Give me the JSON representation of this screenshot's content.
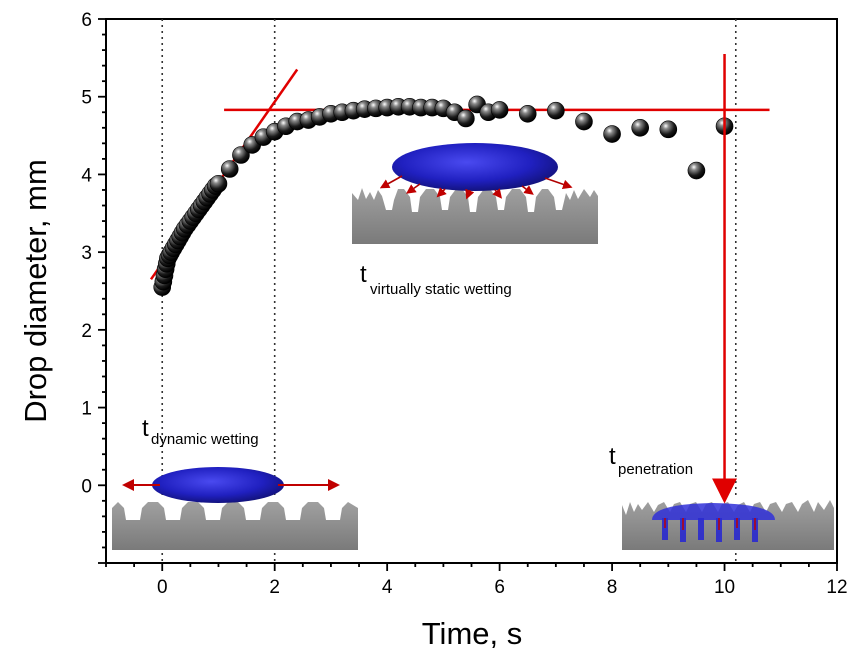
{
  "chart_data": {
    "type": "scatter",
    "xlabel": "Time, s",
    "ylabel": "Drop diameter, mm",
    "xlim": [
      -1,
      12
    ],
    "ylim": [
      -1,
      6
    ],
    "xticks": [
      "0",
      "2",
      "4",
      "6",
      "8",
      "10",
      "12"
    ],
    "yticks": [
      "0",
      "1",
      "2",
      "3",
      "4",
      "5",
      "6"
    ],
    "grid": false,
    "series": [
      {
        "name": "",
        "x": [
          0.0,
          0.02,
          0.04,
          0.06,
          0.08,
          0.1,
          0.13,
          0.16,
          0.2,
          0.24,
          0.28,
          0.32,
          0.36,
          0.4,
          0.45,
          0.5,
          0.55,
          0.6,
          0.65,
          0.7,
          0.75,
          0.8,
          0.85,
          0.9,
          0.95,
          1.0,
          1.2,
          1.4,
          1.6,
          1.8,
          2.0,
          2.2,
          2.4,
          2.6,
          2.8,
          3.0,
          3.2,
          3.4,
          3.6,
          3.8,
          4.0,
          4.2,
          4.4,
          4.6,
          4.8,
          5.0,
          5.2,
          5.4,
          5.6,
          5.8,
          6.0,
          6.5,
          7.0,
          7.5,
          8.0,
          8.5,
          9.0,
          9.5,
          10.0
        ],
        "y": [
          2.55,
          2.62,
          2.7,
          2.78,
          2.85,
          2.92,
          2.96,
          3.0,
          3.05,
          3.1,
          3.15,
          3.2,
          3.25,
          3.3,
          3.35,
          3.4,
          3.45,
          3.5,
          3.55,
          3.6,
          3.65,
          3.7,
          3.75,
          3.8,
          3.85,
          3.88,
          4.07,
          4.25,
          4.38,
          4.48,
          4.55,
          4.62,
          4.68,
          4.7,
          4.74,
          4.78,
          4.8,
          4.82,
          4.84,
          4.85,
          4.86,
          4.87,
          4.87,
          4.86,
          4.86,
          4.85,
          4.8,
          4.72,
          4.9,
          4.8,
          4.83,
          4.78,
          4.82,
          4.68,
          4.52,
          4.6,
          4.58,
          4.05,
          4.62
        ]
      }
    ],
    "lines": [
      {
        "x": [
          -0.2,
          2.4
        ],
        "y": [
          2.65,
          5.35
        ]
      },
      {
        "x": [
          1.1,
          10.8
        ],
        "y": [
          4.83,
          4.83
        ]
      }
    ],
    "arrow": {
      "x": [
        10.0,
        10.0
      ],
      "y": [
        5.55,
        -0.15
      ]
    },
    "vlines": [
      0,
      2,
      10.2
    ],
    "annotations": [
      {
        "t": "t",
        "sub": "virtually static wetting"
      },
      {
        "t": "t",
        "sub": "dynamic wetting"
      },
      {
        "t": "t",
        "sub": "penetration"
      }
    ]
  }
}
